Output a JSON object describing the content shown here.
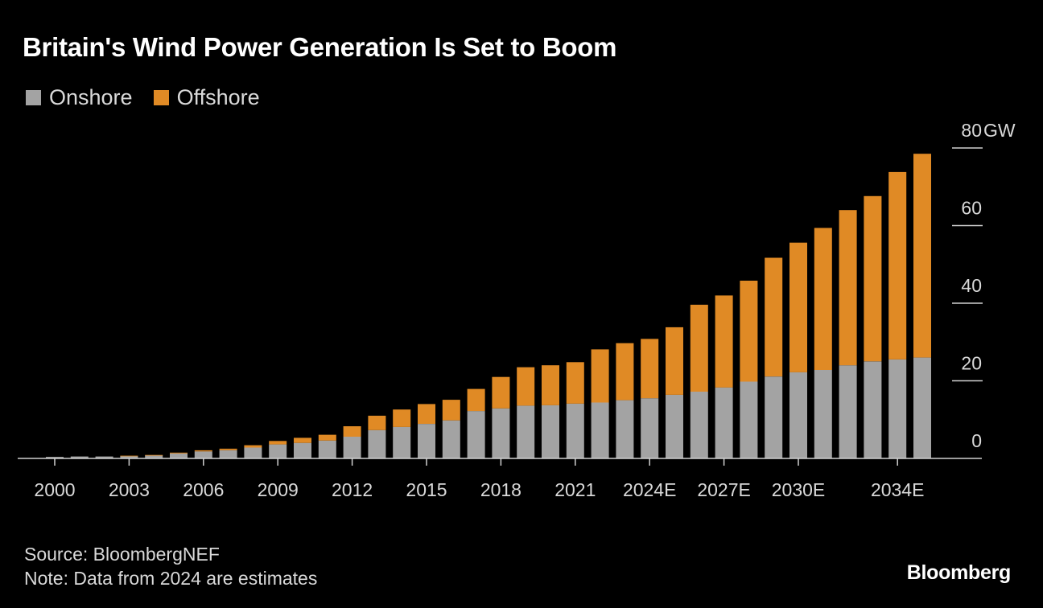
{
  "title": "Britain's Wind Power Generation Is Set to Boom",
  "legend": [
    {
      "label": "Onshore",
      "color": "#a3a3a3"
    },
    {
      "label": "Offshore",
      "color": "#e08a25"
    }
  ],
  "source": "Source: BloombergNEF",
  "note": "Note: Data from 2024 are estimates",
  "logo": "Bloomberg",
  "chart_data": {
    "type": "bar",
    "stacked": true,
    "title": "Britain's Wind Power Generation Is Set to Boom",
    "ylabel": "",
    "ylim": [
      0,
      80
    ],
    "y_unit": "GW",
    "y_ticks": [
      0,
      20,
      40,
      60,
      80
    ],
    "grid": false,
    "legend_position": "top-left",
    "categories": [
      "2000",
      "2001",
      "2002",
      "2003",
      "2004",
      "2005",
      "2006",
      "2007",
      "2008",
      "2009",
      "2010",
      "2011",
      "2012",
      "2013",
      "2014",
      "2015",
      "2016",
      "2017",
      "2018",
      "2019",
      "2020",
      "2021",
      "2022",
      "2023",
      "2024E",
      "2025E",
      "2026E",
      "2027E",
      "2028E",
      "2029E",
      "2030E",
      "2031E",
      "2032E",
      "2033E",
      "2034E",
      "2035E"
    ],
    "x_tick_labels": [
      "2000",
      "2003",
      "2006",
      "2009",
      "2012",
      "2015",
      "2018",
      "2021",
      "2024E",
      "2027E",
      "2030E",
      "2034E"
    ],
    "series": [
      {
        "name": "Onshore",
        "color": "#a3a3a3",
        "values": [
          0.4,
          0.5,
          0.5,
          0.6,
          0.8,
          1.3,
          1.8,
          2.1,
          2.8,
          3.6,
          4.0,
          4.6,
          5.6,
          7.3,
          8.1,
          8.9,
          9.8,
          12.2,
          12.9,
          13.6,
          13.7,
          14.1,
          14.4,
          15.0,
          15.5,
          16.4,
          17.2,
          18.3,
          19.8,
          21.1,
          22.2,
          22.8,
          24.0,
          25.0,
          25.5,
          26.0
        ],
        "data_labels": [
          0.4,
          0.5,
          0.5,
          0.6,
          0.8,
          1.3,
          1.8,
          2.1,
          2.8,
          3.6,
          4.0,
          4.6,
          5.6,
          7.3,
          8.1,
          8.9,
          9.8,
          12.2,
          12.9,
          13.6,
          13.7,
          14.1,
          14.4,
          15.0,
          15.5,
          16.4,
          17.2,
          18.3,
          19.8,
          21.1,
          22.2,
          22.8,
          24.0,
          25.0,
          25.5,
          26.0
        ]
      },
      {
        "name": "Offshore",
        "color": "#e08a25",
        "values": [
          0.0,
          0.0,
          0.0,
          0.1,
          0.1,
          0.2,
          0.3,
          0.4,
          0.6,
          0.9,
          1.3,
          1.5,
          2.7,
          3.7,
          4.5,
          5.1,
          5.3,
          5.7,
          8.1,
          9.9,
          10.3,
          10.7,
          13.7,
          14.7,
          15.3,
          17.4,
          22.4,
          23.7,
          26.0,
          30.6,
          33.4,
          36.6,
          40.0,
          42.6,
          48.3,
          52.5
        ]
      }
    ]
  }
}
